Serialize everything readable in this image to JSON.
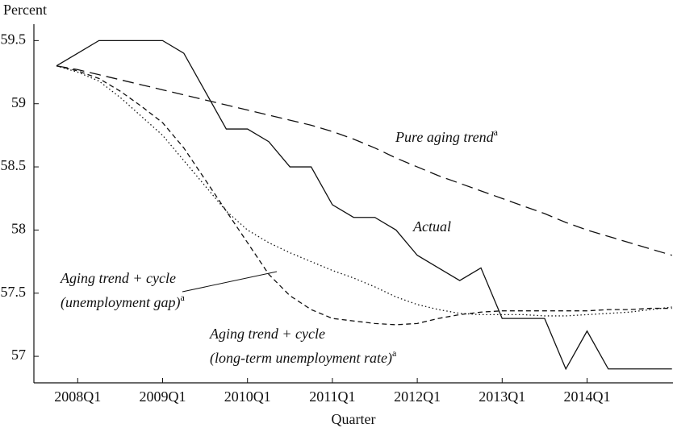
{
  "chart_data": {
    "type": "line",
    "y_label": "Percent",
    "x_label": "Quarter",
    "categories": [
      null,
      "2008Q1",
      null,
      null,
      null,
      "2009Q1",
      null,
      null,
      null,
      "2010Q1",
      null,
      null,
      null,
      "2011Q1",
      null,
      null,
      null,
      "2012Q1",
      null,
      null,
      null,
      "2013Q1",
      null,
      null,
      null,
      "2014Q1",
      null,
      null,
      null,
      null
    ],
    "ylim": [
      56.79,
      59.63
    ],
    "yticks": [
      57,
      57.5,
      58,
      58.5,
      59,
      59.5
    ],
    "series": [
      {
        "label_lines": [
          "Actual"
        ],
        "color": "#111111",
        "dash": "solid",
        "values": [
          59.3,
          59.4,
          59.5,
          59.5,
          59.5,
          59.5,
          59.4,
          59.1,
          58.8,
          58.8,
          58.7,
          58.5,
          58.5,
          58.2,
          58.1,
          58.1,
          58.0,
          57.8,
          57.7,
          57.6,
          57.7,
          57.3,
          57.3,
          57.3,
          56.9,
          57.2,
          56.9,
          56.9,
          56.9,
          56.9
        ]
      },
      {
        "label_lines": [
          "Pure aging trend"
        ],
        "label_sup": "a",
        "color": "#111111",
        "dash": "long-dash",
        "values": [
          59.3,
          59.27,
          59.23,
          59.19,
          59.15,
          59.11,
          59.07,
          59.03,
          58.99,
          58.95,
          58.91,
          58.87,
          58.83,
          58.78,
          58.72,
          58.65,
          58.57,
          58.5,
          58.43,
          58.37,
          58.31,
          58.25,
          58.19,
          58.13,
          58.06,
          58.0,
          57.95,
          57.9,
          57.85,
          57.8
        ]
      },
      {
        "label_lines": [
          "Aging trend + cycle",
          "(unemployment gap)"
        ],
        "label_sup": "a",
        "color": "#111111",
        "dash": "dotted",
        "values": [
          59.3,
          59.25,
          59.18,
          59.05,
          58.9,
          58.75,
          58.55,
          58.35,
          58.15,
          58.0,
          57.9,
          57.82,
          57.75,
          57.68,
          57.62,
          57.55,
          57.47,
          57.41,
          57.37,
          57.34,
          57.33,
          57.33,
          57.33,
          57.32,
          57.32,
          57.33,
          57.34,
          57.35,
          57.37,
          57.39
        ]
      },
      {
        "label_lines": [
          "Aging trend + cycle",
          "(long-term unemployment rate)"
        ],
        "label_sup": "a",
        "color": "#111111",
        "dash": "dashed",
        "values": [
          59.3,
          59.26,
          59.2,
          59.1,
          58.98,
          58.85,
          58.65,
          58.4,
          58.15,
          57.9,
          57.65,
          57.48,
          57.37,
          57.3,
          57.28,
          57.26,
          57.25,
          57.26,
          57.3,
          57.33,
          57.35,
          57.36,
          57.36,
          57.36,
          57.36,
          57.36,
          57.37,
          57.37,
          57.38,
          57.38
        ]
      }
    ]
  }
}
